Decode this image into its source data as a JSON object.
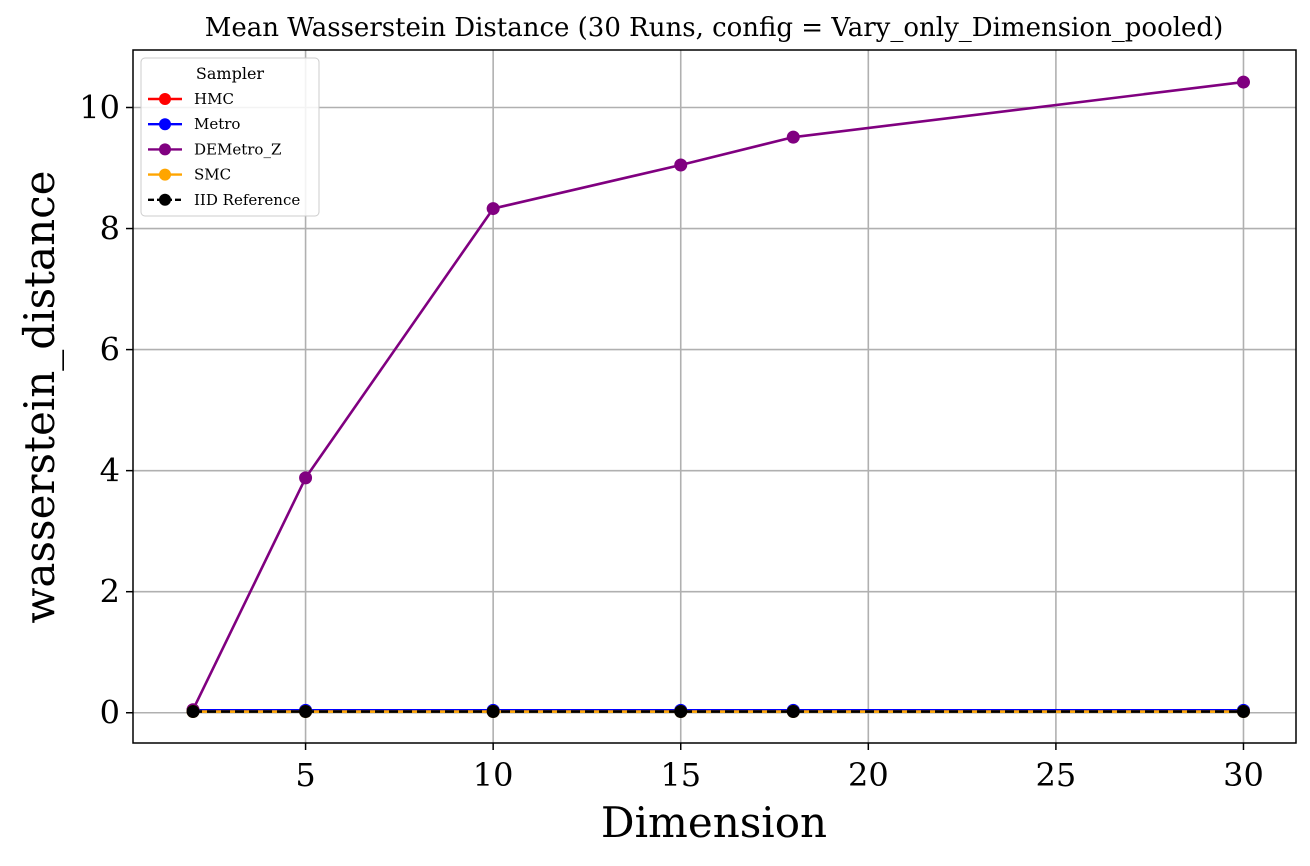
{
  "chart_data": {
    "type": "line",
    "title": "Mean Wasserstein Distance (30 Runs, config = Vary_only_Dimension_pooled)",
    "xlabel": "Dimension",
    "ylabel": "wasserstein_distance",
    "x": [
      2,
      5,
      10,
      15,
      18,
      30
    ],
    "xlim": [
      0.4,
      31.4
    ],
    "ylim": [
      -0.5,
      10.95
    ],
    "xticks": [
      5,
      10,
      15,
      20,
      25,
      30
    ],
    "xtick_labels": [
      "5",
      "10",
      "15",
      "20",
      "25",
      "30"
    ],
    "yticks": [
      0,
      2,
      4,
      6,
      8,
      10
    ],
    "ytick_labels": [
      "0",
      "2",
      "4",
      "6",
      "8",
      "10"
    ],
    "grid": true,
    "legend": {
      "title": "Sampler",
      "placement": "top-left"
    },
    "series": [
      {
        "name": "HMC",
        "color": "#ff0000",
        "linestyle": "solid",
        "marker": "circle",
        "values": [
          0.03,
          0.03,
          0.03,
          0.03,
          0.03,
          0.03
        ]
      },
      {
        "name": "Metro",
        "color": "#0000ff",
        "linestyle": "solid",
        "marker": "circle",
        "values": [
          0.04,
          0.04,
          0.04,
          0.04,
          0.04,
          0.04
        ]
      },
      {
        "name": "DEMetro_Z",
        "color": "#800080",
        "linestyle": "solid",
        "marker": "circle",
        "values": [
          0.05,
          3.88,
          8.33,
          9.05,
          9.51,
          10.42
        ]
      },
      {
        "name": "SMC",
        "color": "#ffa500",
        "linestyle": "solid",
        "marker": "circle",
        "values": [
          0.02,
          0.02,
          0.02,
          0.02,
          0.02,
          0.02
        ]
      },
      {
        "name": "IID Reference",
        "color": "#000000",
        "linestyle": "dashed",
        "marker": "circle",
        "values": [
          0.02,
          0.02,
          0.02,
          0.02,
          0.02,
          0.02
        ]
      }
    ]
  }
}
